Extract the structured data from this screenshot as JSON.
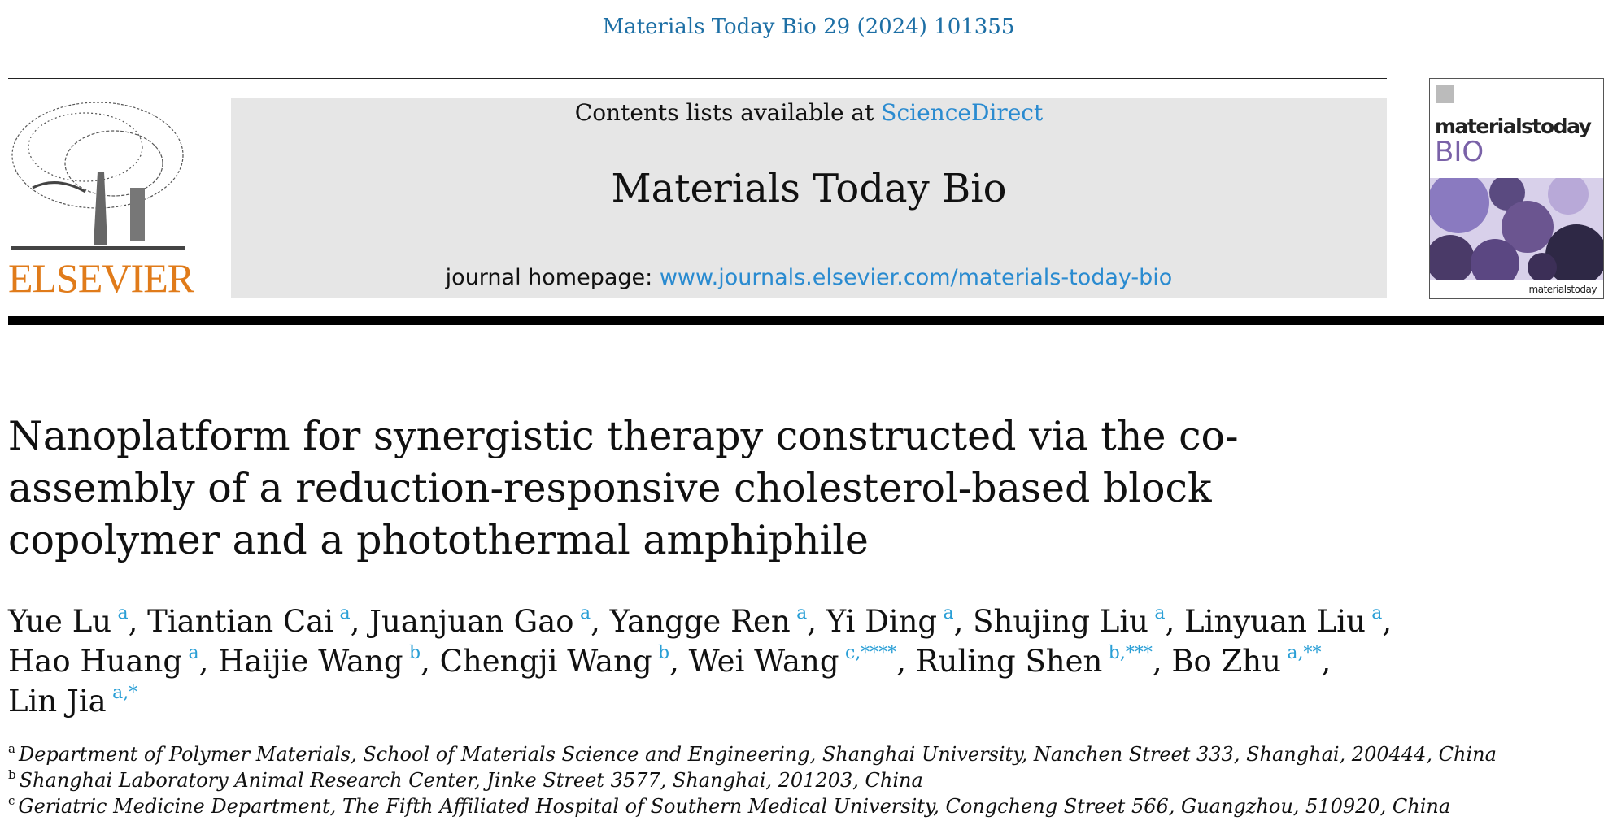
{
  "header": {
    "journal_ref": "Materials Today Bio 29 (2024) 101355",
    "publisher_logo_text": "ELSEVIER",
    "contents_prefix": "Contents lists available at ",
    "contents_link": "ScienceDirect",
    "journal_title": "Materials Today Bio",
    "homepage_prefix": "journal homepage: ",
    "homepage_link": "www.journals.elsevier.com/materials-today-bio",
    "cover_title": "materialstoday",
    "cover_subtitle": "BIO",
    "cover_footer": "materialstoday"
  },
  "article": {
    "title": "Nanoplatform for synergistic therapy constructed via the co-assembly of a reduction-responsive cholesterol-based block copolymer and a photothermal amphiphile",
    "authors": [
      {
        "name": "Yue Lu",
        "sup": "a",
        "sep": ", "
      },
      {
        "name": "Tiantian Cai",
        "sup": "a",
        "sep": ", "
      },
      {
        "name": "Juanjuan Gao",
        "sup": "a",
        "sep": ", "
      },
      {
        "name": "Yangge Ren",
        "sup": "a",
        "sep": ", "
      },
      {
        "name": "Yi Ding",
        "sup": "a",
        "sep": ", "
      },
      {
        "name": "Shujing Liu",
        "sup": "a",
        "sep": ", "
      },
      {
        "name": "Linyuan Liu",
        "sup": "a",
        "sep": ", "
      },
      {
        "name": "Hao Huang",
        "sup": "a",
        "sep": ", "
      },
      {
        "name": "Haijie Wang",
        "sup": "b",
        "sep": ", "
      },
      {
        "name": "Chengji Wang",
        "sup": "b",
        "sep": ", "
      },
      {
        "name": "Wei Wang",
        "sup": "c,****",
        "sep": ", "
      },
      {
        "name": "Ruling Shen",
        "sup": "b,***",
        "sep": ", "
      },
      {
        "name": "Bo Zhu",
        "sup": "a,**",
        "sep": ", "
      },
      {
        "name": "Lin Jia",
        "sup": "a,*",
        "sep": ""
      }
    ],
    "affiliations": [
      {
        "key": "a",
        "text": "Department of Polymer Materials, School of Materials Science and Engineering, Shanghai University, Nanchen Street 333, Shanghai, 200444, China"
      },
      {
        "key": "b",
        "text": "Shanghai Laboratory Animal Research Center, Jinke Street 3577, Shanghai, 201203, China"
      },
      {
        "key": "c",
        "text": "Geriatric Medicine Department, The Fifth Affiliated Hospital of Southern Medical University, Congcheng Street 566, Guangzhou, 510920, China"
      }
    ]
  },
  "colors": {
    "link": "#2a8bd0",
    "journal_ref": "#1d6fa5",
    "elsevier_orange": "#e07b1a",
    "banner_bg": "#e6e6e6"
  }
}
